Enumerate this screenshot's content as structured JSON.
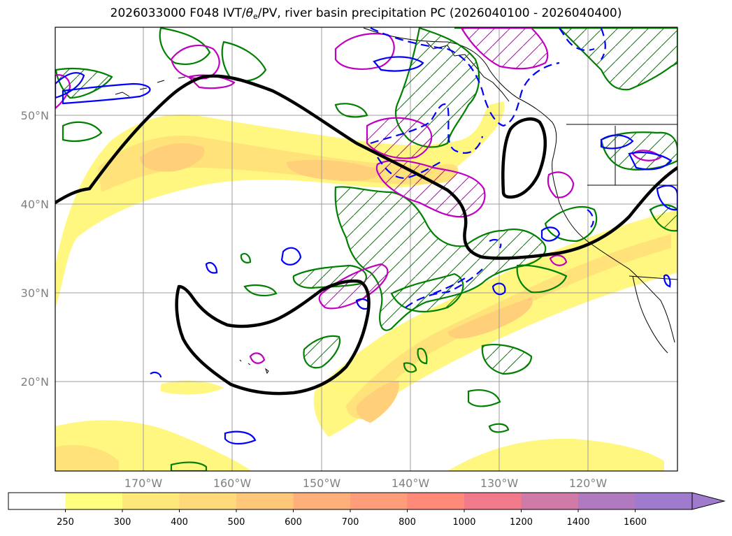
{
  "title": {
    "prefix": "2026033000 F048 IVT/",
    "theta": "θ",
    "theta_sub": "e",
    "suffix": "/PV, river basin precipitation PC (2026040100 - 2026040400)"
  },
  "map": {
    "lat_labels": [
      "50°N",
      "40°N",
      "30°N",
      "20°N"
    ],
    "lon_labels": [
      "170°W",
      "160°W",
      "150°W",
      "140°W",
      "130°W",
      "120°W"
    ],
    "grid_color": "#9e9e9e",
    "contour_colors": {
      "theta_e": "#000000",
      "pv": "#0000ff",
      "precip_green": "#008000",
      "precip_magenta": "#c000c0"
    }
  },
  "colorbar": {
    "levels": [
      "250",
      "300",
      "400",
      "500",
      "600",
      "700",
      "800",
      "1000",
      "1200",
      "1400",
      "1600"
    ],
    "colors": [
      "#ffffff",
      "#ffff80",
      "#ffe87a",
      "#ffd97a",
      "#ffc77a",
      "#ffb07a",
      "#ff9c7a",
      "#ff8a7a",
      "#f07a8a",
      "#d07aa8",
      "#b07ac0",
      "#a07acc"
    ]
  }
}
